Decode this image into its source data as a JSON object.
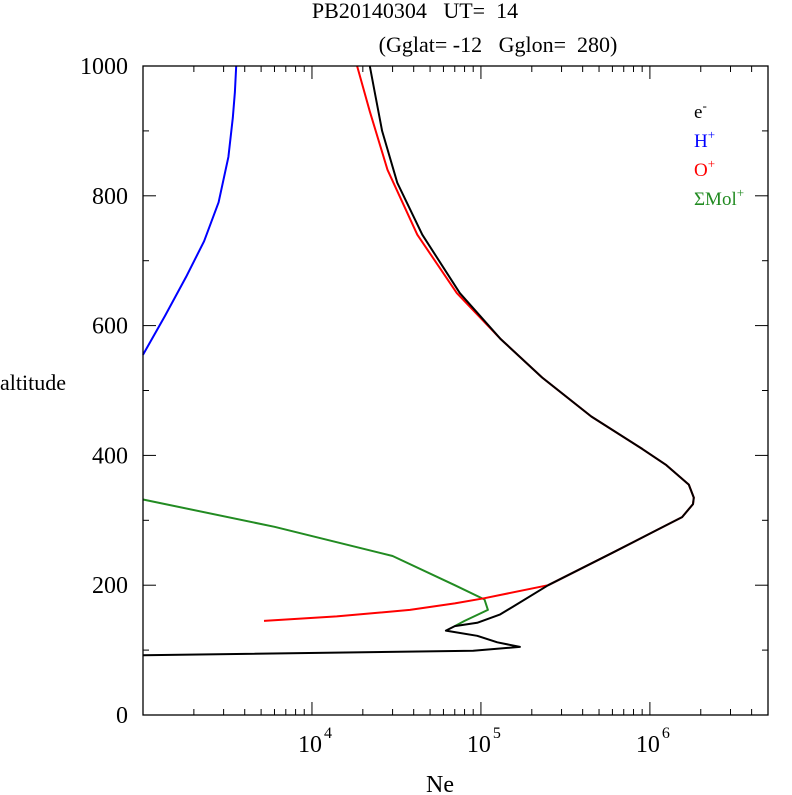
{
  "chart_data": {
    "type": "line",
    "title_line1": "PB20140304   UT=  14",
    "title_line2": "(Gglat= -12   Gglon=  280)",
    "xlabel": "Ne",
    "ylabel": "altitude",
    "x_scale": "log",
    "xlim": [
      1000,
      5000000
    ],
    "ylim": [
      0,
      1000
    ],
    "y_ticks": [
      0,
      200,
      400,
      600,
      800,
      1000
    ],
    "x_tick_labels": [
      {
        "base": "10",
        "exp": "4",
        "value": 10000
      },
      {
        "base": "10",
        "exp": "5",
        "value": 100000
      },
      {
        "base": "10",
        "exp": "6",
        "value": 1000000
      }
    ],
    "legend_position": "top-right",
    "series": [
      {
        "name": "e-",
        "label_base": "e",
        "label_sup": "-",
        "color": "#000000",
        "points": [
          [
            1000,
            92
          ],
          [
            90000,
            99
          ],
          [
            170000,
            105
          ],
          [
            125000,
            112
          ],
          [
            95000,
            122
          ],
          [
            62000,
            130
          ],
          [
            70000,
            137
          ],
          [
            95000,
            142
          ],
          [
            130000,
            155
          ],
          [
            155000,
            167
          ],
          [
            250000,
            200
          ],
          [
            600000,
            250
          ],
          [
            1100000,
            285
          ],
          [
            1550000,
            305
          ],
          [
            1800000,
            325
          ],
          [
            1820000,
            335
          ],
          [
            1700000,
            355
          ],
          [
            1250000,
            385
          ],
          [
            900000,
            410
          ],
          [
            450000,
            460
          ],
          [
            230000,
            520
          ],
          [
            130000,
            580
          ],
          [
            75000,
            650
          ],
          [
            45000,
            740
          ],
          [
            32000,
            820
          ],
          [
            26000,
            900
          ],
          [
            23500,
            960
          ],
          [
            22000,
            1000
          ]
        ]
      },
      {
        "name": "H+",
        "label_base": "H",
        "label_sup": "+",
        "color": "#0000ff",
        "points": [
          [
            1000,
            555
          ],
          [
            1350,
            615
          ],
          [
            1800,
            675
          ],
          [
            2300,
            730
          ],
          [
            2800,
            790
          ],
          [
            3200,
            860
          ],
          [
            3400,
            920
          ],
          [
            3500,
            960
          ],
          [
            3560,
            1000
          ]
        ]
      },
      {
        "name": "O+",
        "label_base": "O",
        "label_sup": "+",
        "color": "#ff0000",
        "points": [
          [
            5200,
            145
          ],
          [
            14000,
            152
          ],
          [
            38000,
            162
          ],
          [
            70000,
            172
          ],
          [
            105000,
            180
          ],
          [
            250000,
            200
          ],
          [
            600000,
            250
          ],
          [
            1100000,
            285
          ],
          [
            1550000,
            305
          ],
          [
            1800000,
            325
          ],
          [
            1820000,
            335
          ],
          [
            1700000,
            355
          ],
          [
            1250000,
            385
          ],
          [
            900000,
            410
          ],
          [
            450000,
            460
          ],
          [
            230000,
            520
          ],
          [
            130000,
            580
          ],
          [
            72000,
            650
          ],
          [
            42000,
            740
          ],
          [
            28000,
            840
          ],
          [
            22000,
            930
          ],
          [
            18500,
            1000
          ]
        ]
      },
      {
        "name": "ΣMol+",
        "label_base": "ΣMol",
        "label_sup": "+",
        "color": "#228b22",
        "points": [
          [
            1000,
            332
          ],
          [
            6000,
            290
          ],
          [
            30000,
            245
          ],
          [
            70000,
            200
          ],
          [
            105000,
            178
          ],
          [
            110000,
            162
          ],
          [
            80000,
            145
          ],
          [
            70000,
            137
          ]
        ]
      }
    ]
  }
}
